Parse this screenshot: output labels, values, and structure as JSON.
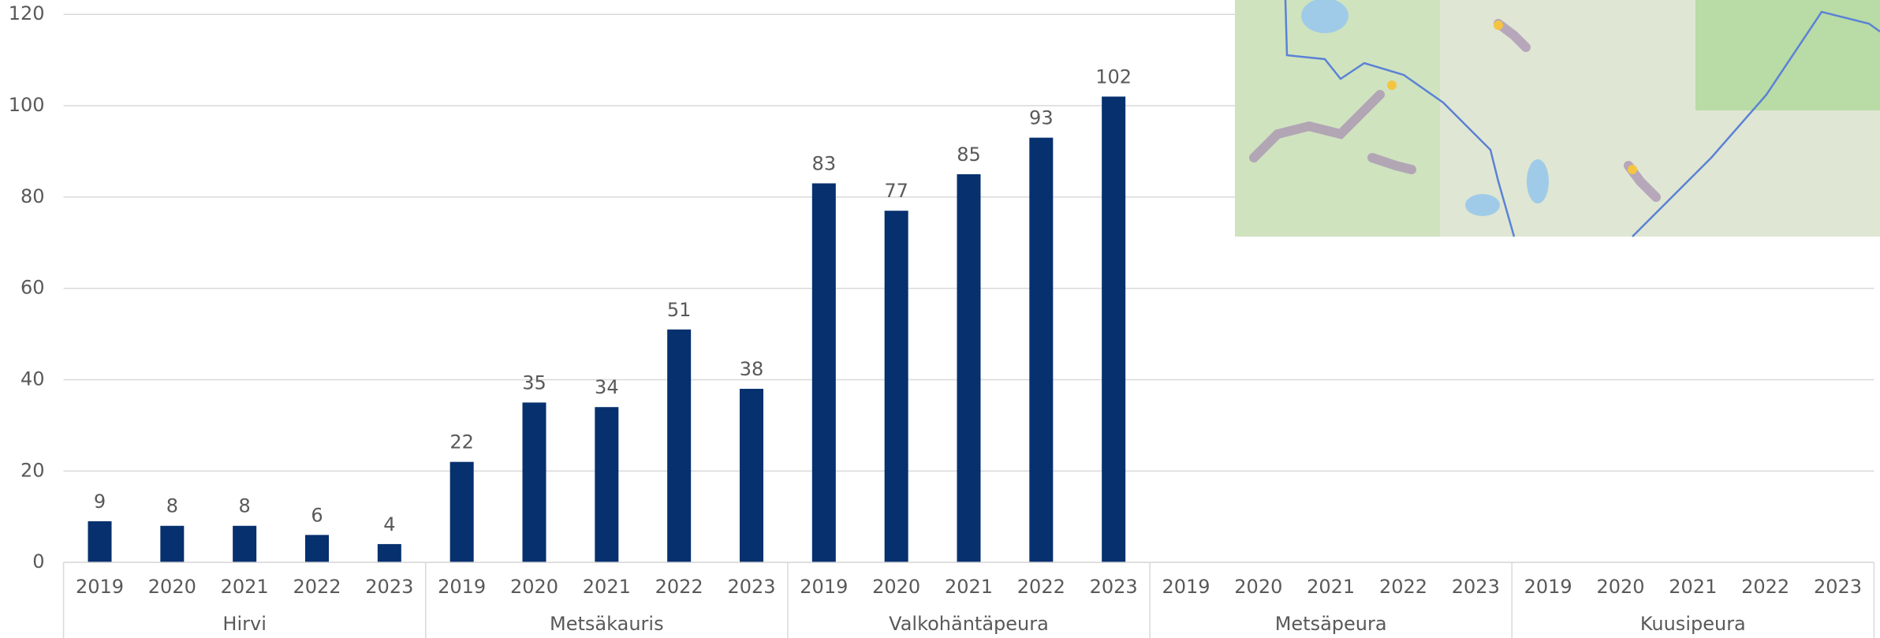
{
  "chart_data": {
    "type": "bar",
    "categories": [
      "2019",
      "2020",
      "2021",
      "2022",
      "2023",
      "2019",
      "2020",
      "2021",
      "2022",
      "2023",
      "2019",
      "2020",
      "2021",
      "2022",
      "2023",
      "2019",
      "2020",
      "2021",
      "2022",
      "2023",
      "2019",
      "2020",
      "2021",
      "2022",
      "2023"
    ],
    "groups": [
      "Hirvi",
      "Metsäkauris",
      "Valkohäntäpeura",
      "Metsäpeura",
      "Kuusipeura"
    ],
    "values": [
      9,
      8,
      8,
      6,
      4,
      22,
      35,
      34,
      51,
      38,
      83,
      77,
      85,
      93,
      102,
      null,
      null,
      null,
      null,
      null,
      null,
      null,
      null,
      null,
      null
    ],
    "color": "#06306e",
    "ylim": [
      0,
      120
    ],
    "yticks": [
      0,
      20,
      40,
      60,
      80,
      100,
      120
    ],
    "grid": true
  }
}
